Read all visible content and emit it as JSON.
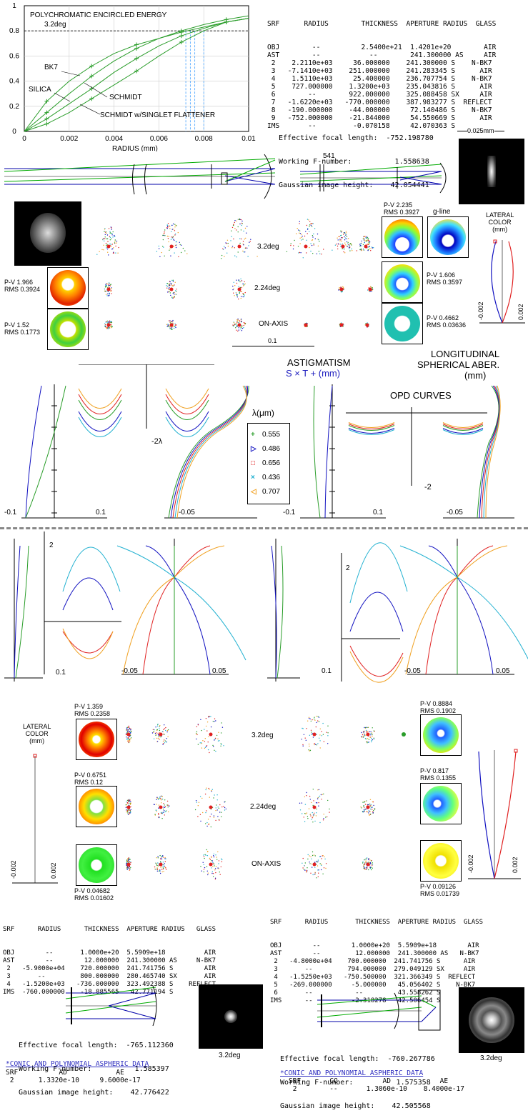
{
  "top_table": {
    "header": "SRF      RADIUS        THICKNESS  APERTURE RADIUS  GLASS",
    "rows": [
      "OBJ        --          2.5400e+21  1.4201e+20        AIR",
      "AST        --            --        241.300000 AS     AIR",
      " 2    2.2110e+03     36.000000    241.300000 S    N-BK7",
      " 3   -7.1410e+03    251.000000    241.283345 S      AIR",
      " 4    1.5110e+03     25.400000    236.707754 S    N-BK7",
      " 5    727.000000    1.3200e+03    235.043816 S      AIR",
      " 6        --        922.000000    325.088458 SX     AIR",
      " 7   -1.6220e+03   -770.000000    387.983277 S  REFLECT",
      " 8   -190.000000    -44.000000     72.140486 S    N-BK7",
      " 9   -752.000000    -21.844000     54.550669 S      AIR",
      "IMS       --         -0.070158     42.070363 S"
    ],
    "focal": "Effective focal length:  -752.198780",
    "fnum": "Working F-number:          1.558638",
    "gauss": "Gaussian image height:    42.054441",
    "scale": "0.025mm"
  },
  "encircled": {
    "title": "POLYCHROMATIC ENCIRCLED ENERGY",
    "field": "3.2deg",
    "xlabel": "RADIUS (mm)",
    "yticks": [
      "1",
      "0.8",
      "0.6",
      "0.4",
      "0.2",
      "0"
    ],
    "xticks": [
      "0",
      "0.002",
      "0.004",
      "0.006",
      "0.008",
      "0.01"
    ],
    "labels": {
      "bk7": "BK7",
      "silica": "SILICA",
      "schmidt": "SCHMIDT",
      "flattener": "SCHMIDT w/SINGLET FLATTENER"
    }
  },
  "layout_label": "541",
  "spot_top": {
    "gline": "g-line",
    "lateral": "LATERAL\nCOLOR\n(mm)",
    "fields": [
      "3.2deg",
      "2.24deg",
      "ON-AXIS"
    ],
    "scale": "0.1",
    "pv": [
      {
        "pv": "P-V 2.235",
        "rms": "RMS 0.3927"
      },
      {
        "pv": "P-V 1.966",
        "rms": "RMS 0.3924"
      },
      {
        "pv": "P-V 1.606",
        "rms": "RMS 0.3597"
      },
      {
        "pv": "P-V 1.52",
        "rms": "RMS 0.1773"
      },
      {
        "pv": "P-V 0.4662",
        "rms": "RMS 0.03636"
      }
    ],
    "lc_ticks": [
      "-0.002",
      "0.002"
    ]
  },
  "aberr": {
    "astig_title": "ASTIGMATISM",
    "astig_legend": "S × T + (mm)",
    "long_title": "LONGITUDINAL\nSPHERICAL ABER.",
    "long_unit": "(mm)",
    "opd_title": "OPD CURVES",
    "twolambda": "-2λ",
    "minus2": "-2",
    "two": "2",
    "lambda_title": "λ(μm)",
    "wavelengths": [
      {
        "w": "0.555",
        "color": "#2a9d2a",
        "sym": "+"
      },
      {
        "w": "0.486",
        "color": "#1010c0",
        "sym": "▷"
      },
      {
        "w": "0.656",
        "color": "#e02020",
        "sym": "□"
      },
      {
        "w": "0.436",
        "color": "#20b0d0",
        "sym": "×"
      },
      {
        "w": "0.707",
        "color": "#f0a020",
        "sym": "◁"
      }
    ],
    "ticks": {
      "m01": "-0.1",
      "p01": "0.1",
      "m005": "-0.05",
      "p005": "0.05"
    }
  },
  "spot_bottom": {
    "lateral": "LATERAL\nCOLOR\n(mm)",
    "fields": [
      "3.2deg",
      "2.24deg",
      "ON-AXIS"
    ],
    "pv": [
      {
        "pv": "P-V 1.359",
        "rms": "RMS 0.2358"
      },
      {
        "pv": "P-V 0.8884",
        "rms": "RMS 0.1902"
      },
      {
        "pv": "P-V 0.6751",
        "rms": "RMS 0.12"
      },
      {
        "pv": "P-V 0.817",
        "rms": "RMS 0.1355"
      },
      {
        "pv": "P-V 0.04682",
        "rms": "RMS 0.01602"
      },
      {
        "pv": "P-V 0.09126",
        "rms": "RMS 0.01739"
      }
    ],
    "lc_ticks": [
      "-0.002",
      "0.002"
    ]
  },
  "left_table": {
    "header": "SRF      RADIUS      THICKNESS  APERTURE RADIUS   GLASS",
    "rows": [
      "OBJ        --       1.0000e+20  5.5909e+18          AIR",
      "AST        --        12.000000  241.300000 AS     N-BK7",
      " 2   -5.9000e+04    720.000000  241.741756 S        AIR",
      " 3       --         800.000000  280.465740 SX       AIR",
      " 4   -1.5200e+03   -736.000000  323.492388 S    REFLECT",
      "IMS  -760.000000    -18.885565   42.771194 S"
    ],
    "focal": "Effective focal length:  -765.112360",
    "fnum": "Working F-number:          1.585397",
    "gauss": "Gaussian image height:    42.776422",
    "field": "3.2deg",
    "asph_title": "*CONIC AND POLYNOMIAL ASPHERIC DATA",
    "asph_head": "SRF          AD            AE",
    "asph_row": " 2      1.3320e-10     9.6000e-17"
  },
  "right_table": {
    "header": "SRF      RADIUS       THICKNESS  APERTURE RADIUS  GLASS",
    "rows": [
      "OBJ        --        1.0000e+20  5.5909e+18        AIR",
      "AST        --         12.000000  241.300000 AS   N-BK7",
      " 2   -4.8000e+04    700.000000  241.741756 S      AIR",
      " 3       --         794.000000  279.049129 SX     AIR",
      " 4   -1.5250e+03   -750.500000  321.366349 S  REFLECT",
      " 5   -269.000000     -5.000000   45.056402 S    N-BK7",
      " 6       --           --         43.558262 S      AIR",
      "IMS      --          -2.318278   42.506454 S"
    ],
    "focal": "Effective focal length:  -760.267786",
    "fnum": "Working F-number:          1.575358",
    "gauss": "Gaussian image height:    42.505568",
    "field": "3.2deg",
    "asph_title": "*CONIC AND POLYNOMIAL ASPHERIC DATA",
    "asph_head": "SRF       CC           AD            AE",
    "asph_row": " 2        --       1.3060e-10    8.4000e-17"
  },
  "chart_data": [
    {
      "type": "line",
      "title": "POLYCHROMATIC ENCIRCLED ENERGY",
      "subtitle": "3.2deg",
      "xlabel": "RADIUS (mm)",
      "ylabel": "",
      "xlim": [
        0,
        0.01
      ],
      "ylim": [
        0,
        1
      ],
      "grid": true,
      "series": [
        {
          "name": "BK7",
          "x": [
            0,
            0.001,
            0.002,
            0.003,
            0.004,
            0.005,
            0.006,
            0.007,
            0.008,
            0.009,
            0.01
          ],
          "y": [
            0,
            0.24,
            0.4,
            0.52,
            0.62,
            0.69,
            0.74,
            0.79,
            0.83,
            0.87,
            0.9
          ]
        },
        {
          "name": "SILICA",
          "x": [
            0,
            0.001,
            0.002,
            0.003,
            0.004,
            0.005,
            0.006,
            0.007,
            0.008,
            0.009,
            0.01
          ],
          "y": [
            0,
            0.15,
            0.3,
            0.44,
            0.56,
            0.66,
            0.74,
            0.8,
            0.85,
            0.89,
            0.92
          ]
        },
        {
          "name": "SCHMIDT",
          "x": [
            0,
            0.001,
            0.002,
            0.003,
            0.004,
            0.005,
            0.006,
            0.007,
            0.008,
            0.009,
            0.01
          ],
          "y": [
            0,
            0.1,
            0.22,
            0.34,
            0.47,
            0.58,
            0.68,
            0.76,
            0.82,
            0.87,
            0.9
          ]
        },
        {
          "name": "SCHMIDT w/SINGLET FLATTENER",
          "x": [
            0,
            0.001,
            0.002,
            0.003,
            0.004,
            0.005,
            0.006,
            0.007,
            0.008,
            0.009,
            0.01
          ],
          "y": [
            0,
            0.06,
            0.15,
            0.26,
            0.37,
            0.48,
            0.6,
            0.71,
            0.8,
            0.87,
            0.9
          ]
        }
      ]
    }
  ]
}
